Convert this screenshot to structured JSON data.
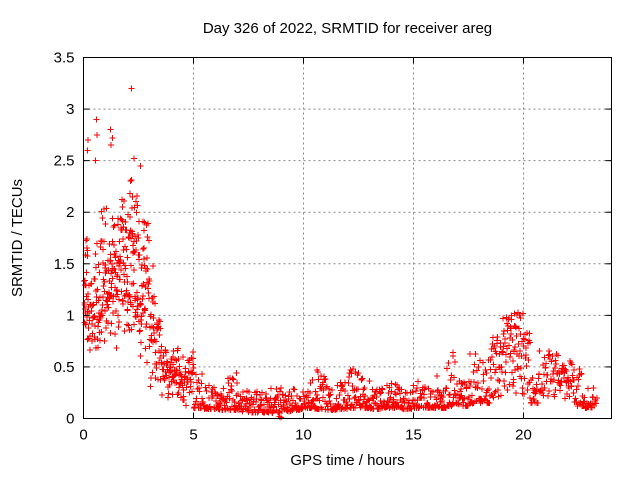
{
  "window": {
    "background": "#ffffff"
  },
  "chart_data": {
    "type": "scatter",
    "title": "Day 326 of 2022, SRMTID for receiver areg",
    "xlabel": "GPS time / hours",
    "ylabel": "SRMTID / TECUs",
    "xlim": [
      0,
      24
    ],
    "ylim": [
      0,
      3.5
    ],
    "xticks": [
      0,
      5,
      10,
      15,
      20
    ],
    "xtick_labels": [
      "0",
      "5",
      "10",
      "15",
      "20"
    ],
    "yticks": [
      0,
      0.5,
      1,
      1.5,
      2,
      2.5,
      3,
      3.5
    ],
    "ytick_labels": [
      "0",
      "0.5",
      "1",
      "1.5",
      "2",
      "2.5",
      "3",
      "3.5"
    ],
    "grid": true,
    "grid_style": "dashed",
    "grid_color": "#888888",
    "legend": "none",
    "marker": "+",
    "marker_size_px": 7,
    "series_color": "#ff0000",
    "frame_color": "#000000",
    "seed": 326,
    "description": "Dense time-series scatter: high variance 0-3h (0.4-2.5 TECUs, peak outlier 3.2 at ~2.2h), decay 3-5h, low quiet band ~0.1-0.35 from 5-17h with two near-zero points at ~8.9h, rising activity after 17h peaking ~1.0 at 19.5-20h, secondary bumps to ~0.65 at 21-22h, data ends ~23.3h",
    "envelope_bins": [
      [
        0.02,
        0.25,
        0.55,
        1.8,
        28,
        "c"
      ],
      [
        0.25,
        0.5,
        0.5,
        1.6,
        18,
        "c"
      ],
      [
        0.5,
        0.75,
        0.45,
        1.95,
        24,
        "c"
      ],
      [
        0.75,
        1.0,
        0.5,
        2.1,
        26,
        "c"
      ],
      [
        1.0,
        1.25,
        0.6,
        2.1,
        28,
        "c"
      ],
      [
        1.25,
        1.5,
        0.6,
        2.25,
        28,
        "c"
      ],
      [
        1.5,
        1.75,
        0.7,
        2.2,
        28,
        "c"
      ],
      [
        1.75,
        2.0,
        0.7,
        2.3,
        30,
        "c"
      ],
      [
        2.0,
        2.25,
        0.6,
        2.5,
        30,
        "c"
      ],
      [
        2.25,
        2.5,
        0.6,
        2.3,
        30,
        "c"
      ],
      [
        2.5,
        2.75,
        0.4,
        2.3,
        28,
        "c"
      ],
      [
        2.75,
        3.0,
        0.3,
        2.2,
        26,
        "c"
      ],
      [
        3.0,
        3.25,
        0.25,
        1.5,
        22,
        "c"
      ],
      [
        3.25,
        3.5,
        0.2,
        1.1,
        20,
        "c"
      ],
      [
        3.5,
        3.75,
        0.18,
        0.8,
        18,
        "c"
      ],
      [
        3.75,
        4.0,
        0.15,
        0.75,
        18,
        "c"
      ],
      [
        4.0,
        4.25,
        0.15,
        0.7,
        18,
        "c"
      ],
      [
        4.25,
        4.5,
        0.12,
        0.75,
        18,
        "c"
      ],
      [
        4.5,
        4.75,
        0.12,
        0.6,
        16,
        "c"
      ],
      [
        4.75,
        5.0,
        0.12,
        0.72,
        18,
        "c"
      ],
      [
        5.0,
        5.5,
        0.1,
        0.5,
        27,
        "b"
      ],
      [
        5.5,
        6.0,
        0.09,
        0.35,
        27,
        "b"
      ],
      [
        6.0,
        6.5,
        0.08,
        0.3,
        27,
        "b"
      ],
      [
        6.5,
        7.0,
        0.08,
        0.42,
        27,
        "b"
      ],
      [
        7.0,
        7.5,
        0.07,
        0.3,
        27,
        "b"
      ],
      [
        7.5,
        8.0,
        0.06,
        0.28,
        27,
        "b"
      ],
      [
        8.0,
        8.5,
        0.06,
        0.26,
        27,
        "b"
      ],
      [
        8.5,
        9.0,
        0.05,
        0.3,
        27,
        "b"
      ],
      [
        9.0,
        9.5,
        0.07,
        0.3,
        27,
        "b"
      ],
      [
        9.5,
        10.0,
        0.08,
        0.35,
        27,
        "b"
      ],
      [
        10.0,
        10.5,
        0.1,
        0.42,
        27,
        "b"
      ],
      [
        10.5,
        11.0,
        0.09,
        0.47,
        27,
        "b"
      ],
      [
        11.0,
        11.5,
        0.08,
        0.32,
        27,
        "b"
      ],
      [
        11.5,
        12.0,
        0.09,
        0.36,
        27,
        "b"
      ],
      [
        12.0,
        12.5,
        0.1,
        0.48,
        27,
        "b"
      ],
      [
        12.5,
        13.0,
        0.1,
        0.4,
        27,
        "b"
      ],
      [
        13.0,
        13.5,
        0.09,
        0.3,
        27,
        "b"
      ],
      [
        13.5,
        14.0,
        0.1,
        0.32,
        27,
        "b"
      ],
      [
        14.0,
        14.5,
        0.1,
        0.34,
        27,
        "b"
      ],
      [
        14.5,
        15.0,
        0.09,
        0.3,
        27,
        "b"
      ],
      [
        15.0,
        15.5,
        0.1,
        0.36,
        27,
        "b"
      ],
      [
        15.5,
        16.0,
        0.1,
        0.32,
        27,
        "b"
      ],
      [
        16.0,
        16.5,
        0.1,
        0.42,
        27,
        "b"
      ],
      [
        16.5,
        17.0,
        0.12,
        0.62,
        27,
        "b"
      ],
      [
        17.0,
        17.5,
        0.12,
        0.48,
        27,
        "b"
      ],
      [
        17.5,
        18.0,
        0.14,
        0.65,
        27,
        "b"
      ],
      [
        18.0,
        18.5,
        0.15,
        0.62,
        27,
        "b"
      ],
      [
        18.5,
        19.0,
        0.18,
        0.8,
        32,
        "u"
      ],
      [
        19.0,
        19.5,
        0.2,
        0.98,
        34,
        "u"
      ],
      [
        19.5,
        20.0,
        0.22,
        1.03,
        34,
        "u"
      ],
      [
        20.0,
        20.3,
        0.2,
        0.85,
        18,
        "u"
      ],
      [
        20.3,
        20.7,
        0.15,
        0.5,
        20,
        "b"
      ],
      [
        20.7,
        21.3,
        0.18,
        0.68,
        30,
        "u"
      ],
      [
        21.3,
        21.8,
        0.2,
        0.66,
        28,
        "u"
      ],
      [
        21.8,
        22.3,
        0.15,
        0.56,
        26,
        "u"
      ],
      [
        22.3,
        22.8,
        0.12,
        0.48,
        24,
        "b"
      ],
      [
        22.8,
        23.2,
        0.1,
        0.3,
        18,
        "b"
      ],
      [
        23.2,
        23.35,
        0.1,
        0.2,
        5,
        "u"
      ]
    ],
    "outlier_points": [
      [
        0.18,
        2.6
      ],
      [
        0.2,
        2.7
      ],
      [
        0.55,
        2.5
      ],
      [
        0.6,
        2.9
      ],
      [
        0.62,
        2.75
      ],
      [
        1.22,
        2.8
      ],
      [
        1.25,
        2.65
      ],
      [
        1.32,
        2.72
      ],
      [
        2.18,
        3.2
      ],
      [
        2.3,
        2.52
      ],
      [
        2.6,
        2.45
      ],
      [
        3.15,
        1.48
      ],
      [
        6.95,
        0.44
      ],
      [
        8.9,
        0.02
      ],
      [
        8.97,
        0.01
      ],
      [
        10.62,
        0.47
      ],
      [
        12.25,
        0.48
      ],
      [
        16.8,
        0.64
      ],
      [
        19.45,
        1.0
      ],
      [
        19.6,
        1.02
      ]
    ]
  }
}
